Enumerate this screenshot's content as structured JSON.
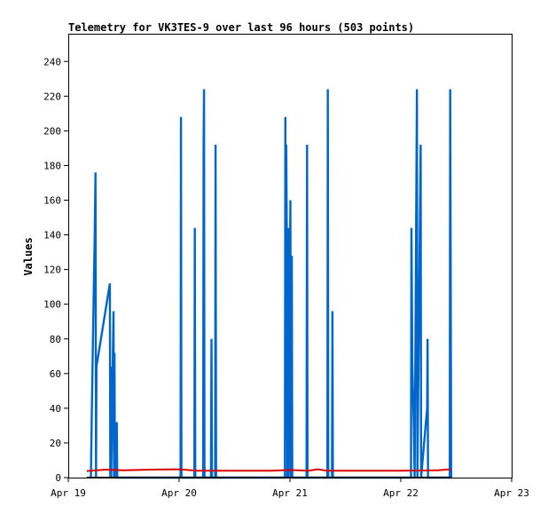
{
  "colors": {
    "background": "#ffffff",
    "axis": "#000000",
    "series_a": "#0066cc",
    "series_b": "#dd0000",
    "series_c": "#000000"
  },
  "chart_data": {
    "type": "line",
    "title": "Telemetry for VK3TES-9 over last 96 hours (503 points)",
    "xlabel": "",
    "ylabel": "Values",
    "xlim": [
      "Apr 19",
      "Apr 23"
    ],
    "ylim": [
      0,
      256
    ],
    "x_ticks": [
      "Apr 19",
      "Apr 20",
      "Apr 21",
      "Apr 22",
      "Apr 23"
    ],
    "y_ticks": [
      0,
      20,
      40,
      60,
      80,
      100,
      120,
      140,
      160,
      180,
      200,
      220,
      240
    ],
    "grid": false,
    "legend": "none",
    "series": [
      {
        "color": "#0066cc",
        "points": [
          [
            "Apr 19 04:54",
            0
          ],
          [
            "Apr 19 05:06",
            40
          ],
          [
            "Apr 19 05:18",
            72
          ],
          [
            "Apr 19 05:30",
            104
          ],
          [
            "Apr 19 05:42",
            136
          ],
          [
            "Apr 19 05:54",
            176
          ],
          [
            "Apr 19 06:00",
            0
          ],
          [
            "Apr 19 06:06",
            64
          ],
          [
            "Apr 19 09:00",
            112
          ],
          [
            "Apr 19 09:06",
            0
          ],
          [
            "Apr 19 09:12",
            64
          ],
          [
            "Apr 19 09:18",
            0
          ],
          [
            "Apr 19 09:48",
            96
          ],
          [
            "Apr 19 09:54",
            0
          ],
          [
            "Apr 19 10:00",
            72
          ],
          [
            "Apr 19 10:06",
            0
          ],
          [
            "Apr 19 10:30",
            32
          ],
          [
            "Apr 19 10:36",
            0
          ],
          [
            "Apr 20 00:18",
            0
          ],
          [
            "Apr 20 00:24",
            208
          ],
          [
            "Apr 20 00:30",
            0
          ],
          [
            "Apr 20 03:18",
            0
          ],
          [
            "Apr 20 03:24",
            144
          ],
          [
            "Apr 20 03:30",
            0
          ],
          [
            "Apr 20 05:12",
            0
          ],
          [
            "Apr 20 05:18",
            192
          ],
          [
            "Apr 20 05:24",
            224
          ],
          [
            "Apr 20 05:30",
            0
          ],
          [
            "Apr 20 06:54",
            0
          ],
          [
            "Apr 20 07:00",
            80
          ],
          [
            "Apr 20 07:06",
            0
          ],
          [
            "Apr 20 07:48",
            0
          ],
          [
            "Apr 20 07:54",
            192
          ],
          [
            "Apr 20 08:00",
            0
          ],
          [
            "Apr 20 22:54",
            0
          ],
          [
            "Apr 20 23:00",
            208
          ],
          [
            "Apr 20 23:06",
            32
          ],
          [
            "Apr 20 23:12",
            192
          ],
          [
            "Apr 20 23:18",
            144
          ],
          [
            "Apr 20 23:24",
            0
          ],
          [
            "Apr 20 23:36",
            144
          ],
          [
            "Apr 20 23:42",
            0
          ],
          [
            "Apr 21 00:06",
            160
          ],
          [
            "Apr 21 00:12",
            0
          ],
          [
            "Apr 21 00:24",
            128
          ],
          [
            "Apr 21 00:30",
            0
          ],
          [
            "Apr 21 03:36",
            0
          ],
          [
            "Apr 21 03:42",
            192
          ],
          [
            "Apr 21 03:48",
            0
          ],
          [
            "Apr 21 08:06",
            0
          ],
          [
            "Apr 21 08:12",
            224
          ],
          [
            "Apr 21 08:18",
            0
          ],
          [
            "Apr 21 09:06",
            0
          ],
          [
            "Apr 21 09:12",
            96
          ],
          [
            "Apr 21 09:18",
            0
          ],
          [
            "Apr 22 02:12",
            0
          ],
          [
            "Apr 22 02:18",
            144
          ],
          [
            "Apr 22 02:30",
            64
          ],
          [
            "Apr 22 02:48",
            32
          ],
          [
            "Apr 22 03:00",
            0
          ],
          [
            "Apr 22 03:30",
            224
          ],
          [
            "Apr 22 03:36",
            0
          ],
          [
            "Apr 22 04:18",
            192
          ],
          [
            "Apr 22 04:24",
            0
          ],
          [
            "Apr 22 05:42",
            40
          ],
          [
            "Apr 22 05:48",
            80
          ],
          [
            "Apr 22 05:54",
            0
          ],
          [
            "Apr 22 10:36",
            0
          ],
          [
            "Apr 22 10:42",
            224
          ],
          [
            "Apr 22 10:48",
            112
          ],
          [
            "Apr 22 10:54",
            0
          ]
        ]
      },
      {
        "color": "#dd0000",
        "points": [
          [
            "Apr 19 04:00",
            3.8
          ],
          [
            "Apr 19 08:00",
            4.6
          ],
          [
            "Apr 19 12:00",
            4.2
          ],
          [
            "Apr 19 18:00",
            4.6
          ],
          [
            "Apr 20 00:00",
            4.8
          ],
          [
            "Apr 20 04:00",
            4.0
          ],
          [
            "Apr 20 12:00",
            4.0
          ],
          [
            "Apr 20 20:00",
            4.0
          ],
          [
            "Apr 21 00:00",
            4.4
          ],
          [
            "Apr 21 04:00",
            4.0
          ],
          [
            "Apr 21 06:00",
            4.8
          ],
          [
            "Apr 21 08:00",
            4.0
          ],
          [
            "Apr 21 16:00",
            4.0
          ],
          [
            "Apr 22 00:00",
            4.0
          ],
          [
            "Apr 22 08:00",
            4.2
          ],
          [
            "Apr 22 10:48",
            4.8
          ]
        ]
      },
      {
        "color": "#000000",
        "points": [
          [
            "Apr 19 04:00",
            0
          ],
          [
            "Apr 22 10:48",
            0
          ]
        ]
      }
    ]
  }
}
